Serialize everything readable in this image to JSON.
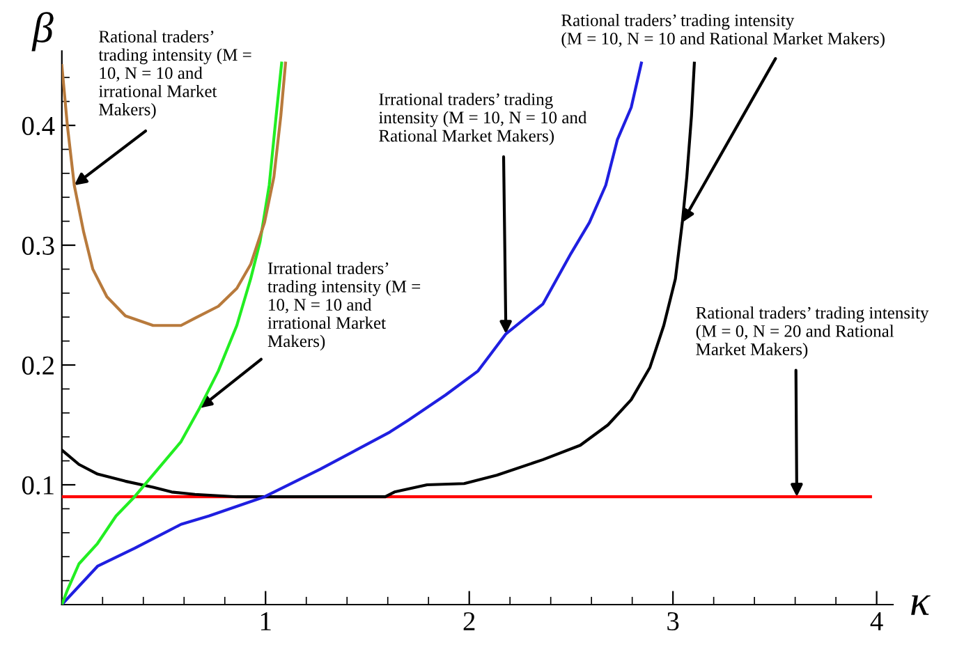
{
  "chart_data": {
    "type": "line",
    "xlabel": "κ",
    "ylabel": "β",
    "xlim": [
      0,
      4.08
    ],
    "ylim": [
      0,
      0.462
    ],
    "xticks": [
      {
        "value": 0.2,
        "label": null
      },
      {
        "value": 0.4,
        "label": null
      },
      {
        "value": 0.6,
        "label": null
      },
      {
        "value": 0.8,
        "label": null
      },
      1,
      {
        "value": 1.2,
        "label": null
      },
      {
        "value": 1.4,
        "label": null
      },
      {
        "value": 1.6,
        "label": null
      },
      {
        "value": 1.8,
        "label": null
      },
      2,
      {
        "value": 2.2,
        "label": null
      },
      {
        "value": 2.4,
        "label": null
      },
      {
        "value": 2.6,
        "label": null
      },
      {
        "value": 2.8,
        "label": null
      },
      3,
      {
        "value": 3.2,
        "label": null
      },
      {
        "value": 3.4,
        "label": null
      },
      {
        "value": 3.6,
        "label": null
      },
      {
        "value": 3.8,
        "label": null
      },
      4
    ],
    "yticks": [
      {
        "value": 0.02,
        "label": null
      },
      {
        "value": 0.04,
        "label": null
      },
      {
        "value": 0.06,
        "label": null
      },
      {
        "value": 0.08,
        "label": null
      },
      0.1,
      {
        "value": 0.12,
        "label": null
      },
      {
        "value": 0.14,
        "label": null
      },
      {
        "value": 0.16,
        "label": null
      },
      {
        "value": 0.18,
        "label": null
      },
      0.2,
      {
        "value": 0.22,
        "label": null
      },
      {
        "value": 0.24,
        "label": null
      },
      {
        "value": 0.26,
        "label": null
      },
      {
        "value": 0.28,
        "label": null
      },
      0.3,
      {
        "value": 0.32,
        "label": null
      },
      {
        "value": 0.34,
        "label": null
      },
      {
        "value": 0.36,
        "label": null
      },
      {
        "value": 0.38,
        "label": null
      },
      0.4,
      {
        "value": 0.42,
        "label": null
      },
      {
        "value": 0.44,
        "label": null
      }
    ],
    "grid": false,
    "legend": false,
    "marker": "none",
    "line_style": "solid",
    "series": [
      {
        "color": "#b87a3c",
        "x": [
          0,
          0.027,
          0.061,
          0.107,
          0.152,
          0.221,
          0.312,
          0.448,
          0.585,
          0.653,
          0.768,
          0.859,
          0.927,
          0.995,
          1.041,
          1.075,
          1.098
        ],
        "values": [
          0.45,
          0.4,
          0.35,
          0.311,
          0.28,
          0.257,
          0.241,
          0.233,
          0.233,
          0.239,
          0.249,
          0.264,
          0.284,
          0.319,
          0.357,
          0.408,
          0.452
        ]
      },
      {
        "color": "#22ee22",
        "x": [
          0,
          0.027,
          0.084,
          0.175,
          0.266,
          0.357,
          0.471,
          0.585,
          0.676,
          0.768,
          0.859,
          0.927,
          0.973,
          1.018,
          1.052,
          1.079
        ],
        "values": [
          0,
          0.012,
          0.034,
          0.051,
          0.074,
          0.09,
          0.113,
          0.136,
          0.164,
          0.195,
          0.233,
          0.272,
          0.303,
          0.35,
          0.408,
          0.452
        ]
      },
      {
        "color": "#1f1fe0",
        "x": [
          0,
          0.175,
          0.357,
          0.585,
          0.722,
          0.995,
          1.268,
          1.61,
          1.701,
          1.884,
          2.043,
          2.18,
          2.362,
          2.499,
          2.59,
          2.67,
          2.727,
          2.795,
          2.845
        ],
        "values": [
          0,
          0.032,
          0.047,
          0.067,
          0.074,
          0.09,
          0.113,
          0.144,
          0.154,
          0.175,
          0.195,
          0.226,
          0.251,
          0.293,
          0.319,
          0.35,
          0.388,
          0.415,
          0.452
        ]
      },
      {
        "color": "#000000",
        "x": [
          0,
          0.084,
          0.175,
          0.312,
          0.448,
          0.539,
          0.653,
          0.859,
          1.588,
          1.633,
          1.793,
          1.975,
          2.135,
          2.362,
          2.545,
          2.681,
          2.795,
          2.887,
          2.955,
          3.012,
          3.046,
          3.068,
          3.091,
          3.105
        ],
        "values": [
          0.129,
          0.117,
          0.109,
          0.103,
          0.098,
          0.094,
          0.092,
          0.09,
          0.09,
          0.094,
          0.1,
          0.101,
          0.108,
          0.121,
          0.133,
          0.15,
          0.171,
          0.198,
          0.233,
          0.272,
          0.319,
          0.357,
          0.408,
          0.452
        ]
      },
      {
        "color": "#ff0000",
        "x": [
          0,
          3.97
        ],
        "values": [
          0.09,
          0.09
        ]
      }
    ],
    "annotations": [
      {
        "text": "Rational traders’\ntrading intensity (M =\n10, N = 10 and\nirrational Market\nMakers)",
        "x": 0.061,
        "y": 0.35
      },
      {
        "text": "Irrational traders’\ntrading intensity (M =\n10, N = 10 and\nirrational Market\nMakers)",
        "x": 0.676,
        "y": 0.164
      },
      {
        "text": "Irrational traders’ trading\nintensity (M = 10, N = 10 and\nRational Market Makers)",
        "x": 2.18,
        "y": 0.226
      },
      {
        "text": "Rational traders’ trading intensity\n(M = 10, N = 10 and Rational Market Makers)",
        "x": 3.046,
        "y": 0.319
      },
      {
        "text": "Rational traders’ trading intensity\n(M = 0, N = 20 and Rational\nMarket Makers)",
        "x": 3.608,
        "y": 0.09
      }
    ]
  }
}
